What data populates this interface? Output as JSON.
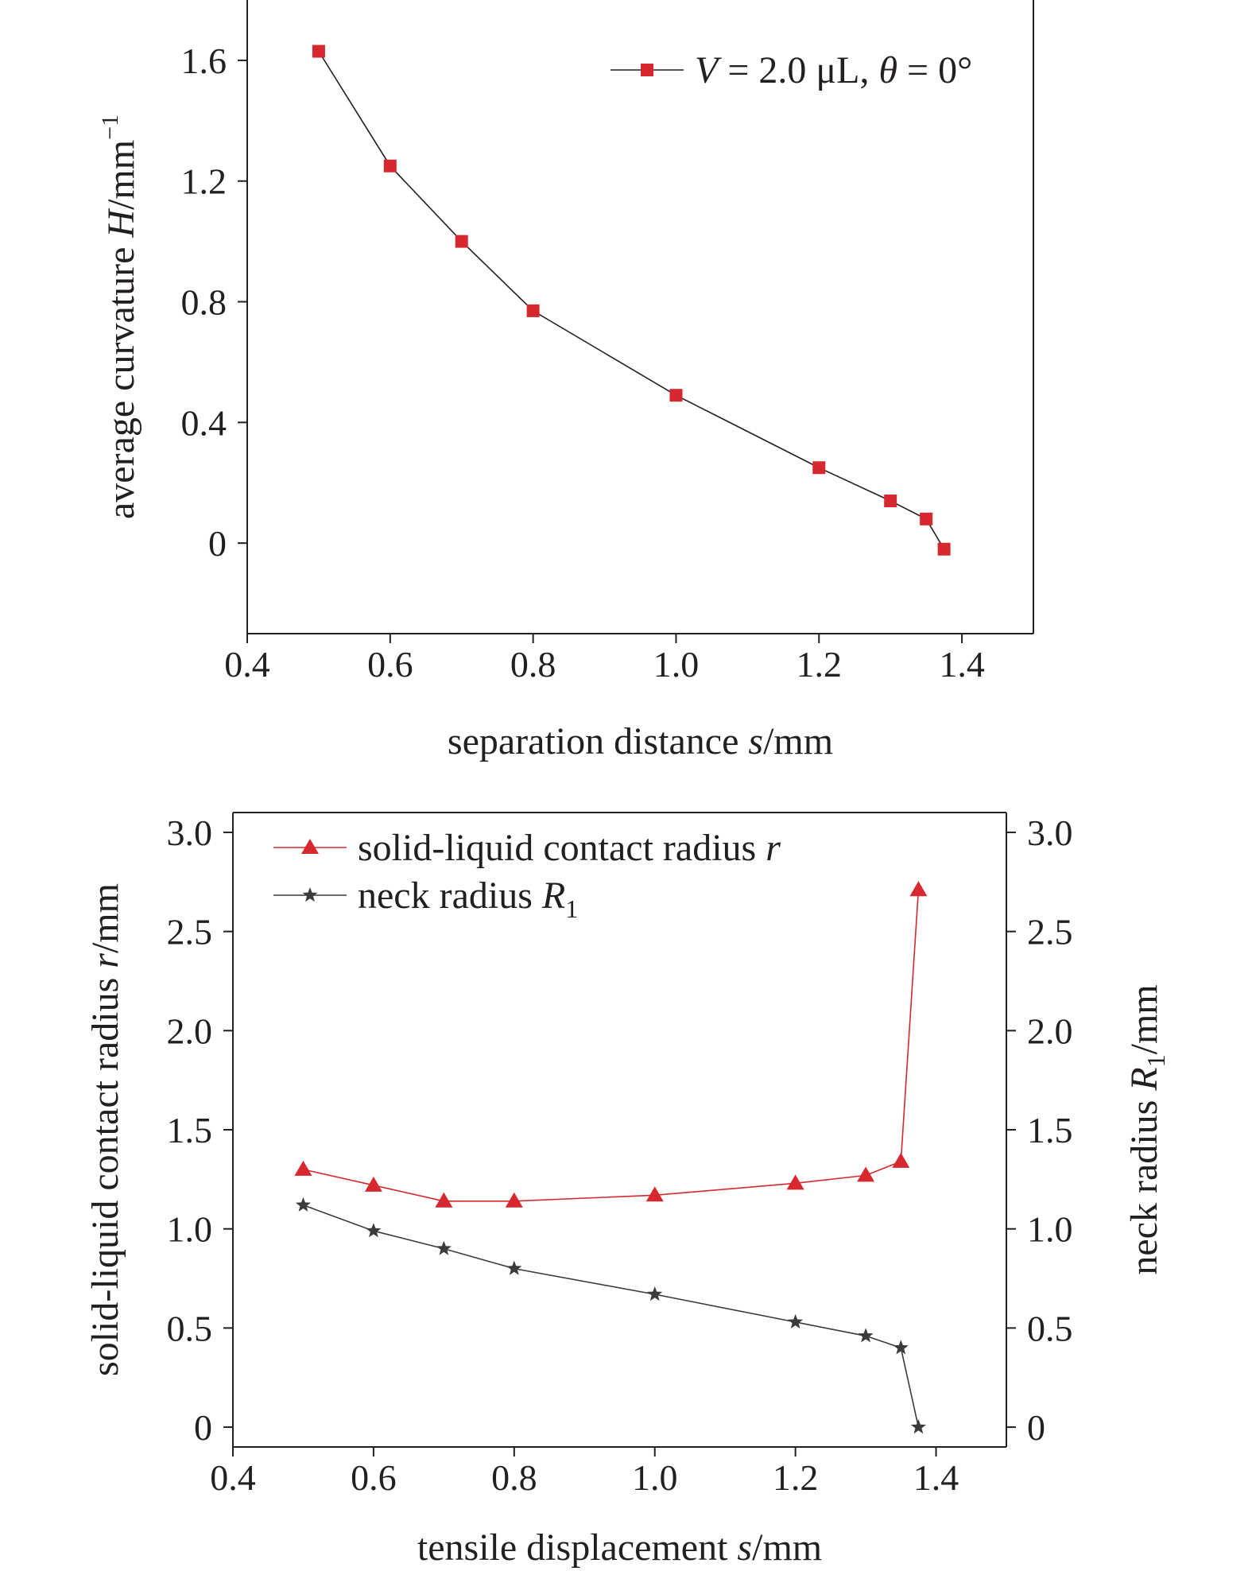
{
  "chart_data": [
    {
      "type": "line",
      "title": "",
      "xlabel": {
        "prefix": "separation distance ",
        "var": "s",
        "suffix": "/mm"
      },
      "ylabel": {
        "prefix": "average curvature ",
        "var": "H",
        "suffix": "/mm",
        "sup": "−1"
      },
      "xlim": [
        0.4,
        1.5
      ],
      "ylim": [
        -0.3,
        1.8
      ],
      "xticks": [
        0.4,
        0.6,
        0.8,
        1.0,
        1.2,
        1.4
      ],
      "xtick_labels": [
        "0.4",
        "0.6",
        "0.8",
        "1.0",
        "1.2",
        "1.4"
      ],
      "yticks": [
        0,
        0.4,
        0.8,
        1.2,
        1.6
      ],
      "ytick_labels": [
        "0",
        "0.4",
        "0.8",
        "1.2",
        "1.6"
      ],
      "grid": false,
      "legend_position": "top-right",
      "series": [
        {
          "legend": [
            {
              "t": "V",
              "i": true
            },
            {
              "t": " = 2.0 μL, "
            },
            {
              "t": "θ",
              "i": true
            },
            {
              "t": " = 0°"
            }
          ],
          "marker": "square",
          "marker_color": "#d7282f",
          "line_color": "#231f20",
          "x": [
            0.5,
            0.6,
            0.7,
            0.8,
            1.0,
            1.2,
            1.3,
            1.35,
            1.375
          ],
          "y": [
            1.63,
            1.25,
            1.0,
            0.77,
            0.49,
            0.25,
            0.14,
            0.08,
            -0.02
          ]
        }
      ]
    },
    {
      "type": "line",
      "title": "",
      "xlabel": {
        "prefix": "tensile displacement ",
        "var": "s",
        "suffix": "/mm"
      },
      "ylabel": {
        "prefix": "solid-liquid contact radius ",
        "var": "r",
        "suffix": "/mm"
      },
      "ylabel_right": {
        "prefix": "neck radius ",
        "var": "R",
        "sub": "1",
        "suffix": "/mm"
      },
      "xlim": [
        0.4,
        1.5
      ],
      "ylim": [
        -0.1,
        3.1
      ],
      "xticks": [
        0.4,
        0.6,
        0.8,
        1.0,
        1.2,
        1.4
      ],
      "xtick_labels": [
        "0.4",
        "0.6",
        "0.8",
        "1.0",
        "1.2",
        "1.4"
      ],
      "yticks": [
        0,
        0.5,
        1.0,
        1.5,
        2.0,
        2.5,
        3.0
      ],
      "ytick_labels": [
        "0",
        "0.5",
        "1.0",
        "1.5",
        "2.0",
        "2.5",
        "3.0"
      ],
      "grid": false,
      "legend_position": "top-left",
      "series": [
        {
          "legend": [
            {
              "t": "solid-liquid contact radius "
            },
            {
              "t": "r",
              "i": true
            }
          ],
          "marker": "triangle",
          "marker_color": "#d7282f",
          "line_color": "#d7282f",
          "x": [
            0.5,
            0.6,
            0.7,
            0.8,
            1.0,
            1.2,
            1.3,
            1.35,
            1.375
          ],
          "y": [
            1.3,
            1.22,
            1.14,
            1.14,
            1.17,
            1.23,
            1.27,
            1.34,
            2.71
          ]
        },
        {
          "legend": [
            {
              "t": "neck radius "
            },
            {
              "t": "R",
              "i": true
            },
            {
              "t": "1",
              "sub": true
            }
          ],
          "marker": "star",
          "marker_color": "#3b3b3d",
          "line_color": "#3b3b3d",
          "x": [
            0.5,
            0.6,
            0.7,
            0.8,
            1.0,
            1.2,
            1.3,
            1.35,
            1.375
          ],
          "y": [
            1.12,
            0.99,
            0.9,
            0.8,
            0.67,
            0.53,
            0.46,
            0.4,
            0.0
          ]
        }
      ]
    }
  ]
}
